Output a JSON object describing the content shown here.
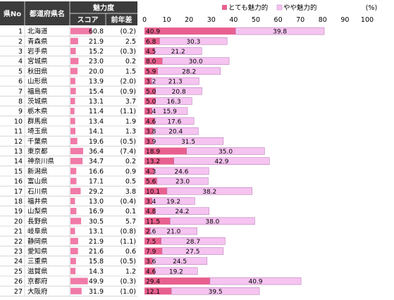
{
  "table": {
    "headers": {
      "no": "県No",
      "name": "都道府県名",
      "group": "魅力度",
      "score": "スコア",
      "diff": "前年差"
    }
  },
  "legend": {
    "very": "とても魅力的",
    "somewhat": "やや魅力的",
    "unit": "(%)"
  },
  "colors": {
    "very": "#e8608f",
    "somewhat": "#f5c4f0",
    "header_bg": "#3c3c3c",
    "header_text": "#ffffff",
    "score_bar": "#f07aa8"
  },
  "chart_data": {
    "type": "bar",
    "orientation": "horizontal",
    "stacked": true,
    "xlim": [
      0,
      100
    ],
    "xticks": [
      0,
      10,
      20,
      30,
      40,
      50,
      60,
      70,
      80,
      90,
      100
    ],
    "legend_position": "top",
    "categories": [
      "北海道",
      "青森県",
      "岩手県",
      "宮城県",
      "秋田県",
      "山形県",
      "福島県",
      "茨城県",
      "栃木県",
      "群馬県",
      "埼玉県",
      "千葉県",
      "東京都",
      "神奈川県",
      "新潟県",
      "富山県",
      "石川県",
      "福井県",
      "山梨県",
      "長野県",
      "岐阜県",
      "静岡県",
      "愛知県",
      "三重県",
      "滋賀県",
      "京都府",
      "大阪府"
    ],
    "rows": [
      {
        "no": "1",
        "name": "北海道",
        "score": "60.8",
        "diff": "(0.2)",
        "very": 40.9,
        "somewhat": 39.8
      },
      {
        "no": "2",
        "name": "青森県",
        "score": "21.9",
        "diff": "2.5",
        "very": 6.8,
        "somewhat": 30.3
      },
      {
        "no": "3",
        "name": "岩手県",
        "score": "15.2",
        "diff": "(0.3)",
        "very": 4.5,
        "somewhat": 21.2
      },
      {
        "no": "4",
        "name": "宮城県",
        "score": "23.0",
        "diff": "0.2",
        "very": 8.0,
        "somewhat": 30.0
      },
      {
        "no": "5",
        "name": "秋田県",
        "score": "20.0",
        "diff": "1.5",
        "very": 5.9,
        "somewhat": 28.2
      },
      {
        "no": "6",
        "name": "山形県",
        "score": "13.9",
        "diff": "(2.0)",
        "very": 3.2,
        "somewhat": 21.3
      },
      {
        "no": "7",
        "name": "福島県",
        "score": "15.4",
        "diff": "(0.9)",
        "very": 5.0,
        "somewhat": 20.8
      },
      {
        "no": "8",
        "name": "茨城県",
        "score": "13.1",
        "diff": "3.7",
        "very": 5.0,
        "somewhat": 16.3
      },
      {
        "no": "9",
        "name": "栃木県",
        "score": "11.4",
        "diff": "(1.1)",
        "very": 3.4,
        "somewhat": 15.9
      },
      {
        "no": "10",
        "name": "群馬県",
        "score": "13.4",
        "diff": "1.9",
        "very": 4.6,
        "somewhat": 17.6
      },
      {
        "no": "11",
        "name": "埼玉県",
        "score": "14.1",
        "diff": "1.3",
        "very": 3.8,
        "somewhat": 20.4
      },
      {
        "no": "12",
        "name": "千葉県",
        "score": "19.6",
        "diff": "(0.5)",
        "very": 3.9,
        "somewhat": 31.5
      },
      {
        "no": "13",
        "name": "東京都",
        "score": "36.4",
        "diff": "(7.4)",
        "very": 18.9,
        "somewhat": 35.0
      },
      {
        "no": "14",
        "name": "神奈川県",
        "score": "34.7",
        "diff": "0.2",
        "very": 13.2,
        "somewhat": 42.9
      },
      {
        "no": "15",
        "name": "新潟県",
        "score": "16.6",
        "diff": "0.9",
        "very": 4.3,
        "somewhat": 24.6
      },
      {
        "no": "16",
        "name": "富山県",
        "score": "17.1",
        "diff": "0.5",
        "very": 5.6,
        "somewhat": 23.0
      },
      {
        "no": "17",
        "name": "石川県",
        "score": "29.2",
        "diff": "3.8",
        "very": 10.1,
        "somewhat": 38.2
      },
      {
        "no": "18",
        "name": "福井県",
        "score": "13.0",
        "diff": "(0.4)",
        "very": 3.4,
        "somewhat": 19.2
      },
      {
        "no": "19",
        "name": "山梨県",
        "score": "16.9",
        "diff": "0.1",
        "very": 4.8,
        "somewhat": 24.2
      },
      {
        "no": "20",
        "name": "長野県",
        "score": "30.5",
        "diff": "5.7",
        "very": 11.5,
        "somewhat": 38.0
      },
      {
        "no": "21",
        "name": "岐阜県",
        "score": "13.1",
        "diff": "(0.8)",
        "very": 2.6,
        "somewhat": 21.0
      },
      {
        "no": "22",
        "name": "静岡県",
        "score": "21.9",
        "diff": "(1.1)",
        "very": 7.5,
        "somewhat": 28.7
      },
      {
        "no": "23",
        "name": "愛知県",
        "score": "21.6",
        "diff": "0.6",
        "very": 7.9,
        "somewhat": 27.5
      },
      {
        "no": "24",
        "name": "三重県",
        "score": "15.8",
        "diff": "(0.5)",
        "very": 3.6,
        "somewhat": 24.5
      },
      {
        "no": "25",
        "name": "滋賀県",
        "score": "14.3",
        "diff": "1.2",
        "very": 4.6,
        "somewhat": 19.2
      },
      {
        "no": "26",
        "name": "京都府",
        "score": "49.9",
        "diff": "(0.3)",
        "very": 29.4,
        "somewhat": 40.9
      },
      {
        "no": "27",
        "name": "大阪府",
        "score": "31.9",
        "diff": "(1.0)",
        "very": 12.1,
        "somewhat": 39.5
      }
    ]
  }
}
